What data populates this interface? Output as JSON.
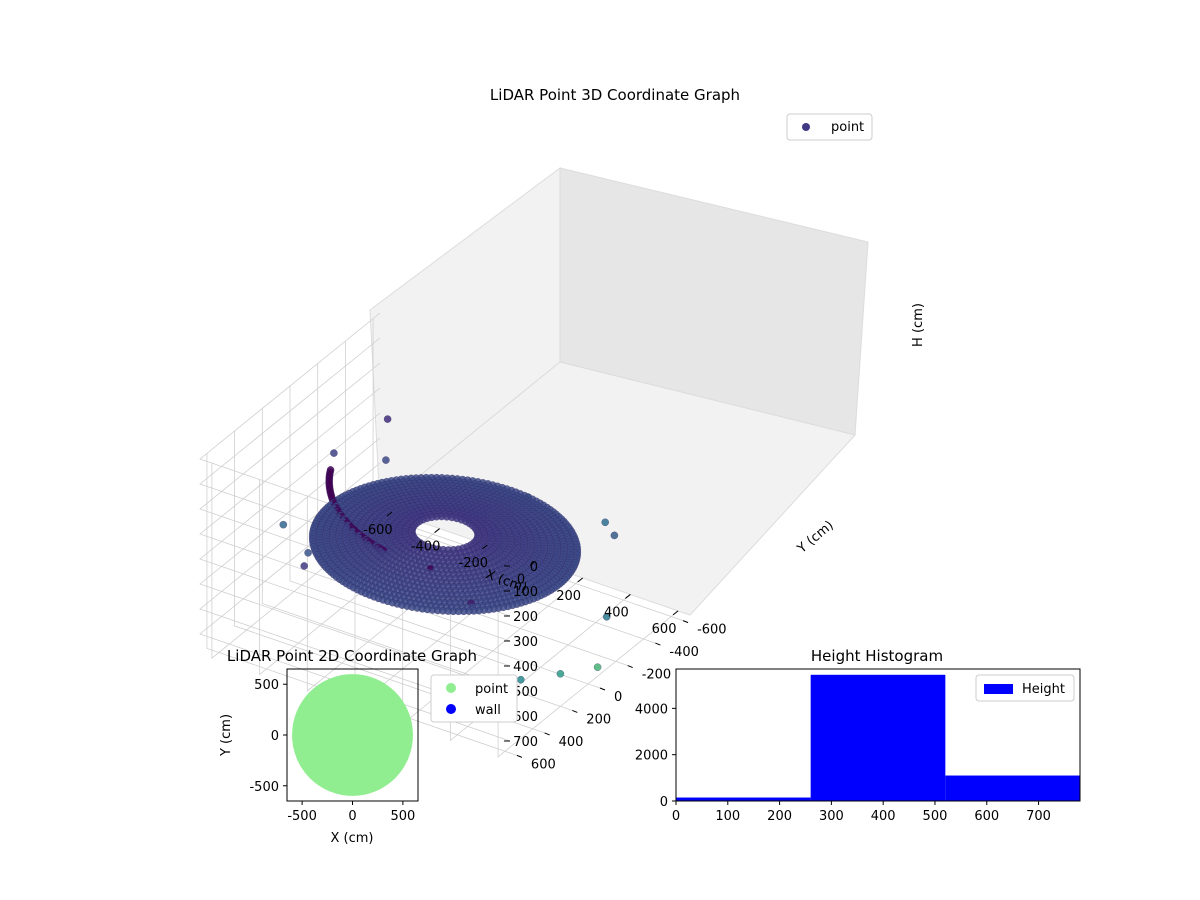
{
  "chart_data": [
    {
      "type": "scatter3d",
      "title": "LiDAR Point 3D Coordinate Graph",
      "xlabel": "X (cm)",
      "ylabel": "Y (cm)",
      "zlabel": "H (cm)",
      "xticks": [
        "-600",
        "-400",
        "-200",
        "0",
        "200",
        "400",
        "600"
      ],
      "yticks": [
        "-600",
        "-400",
        "-200",
        "0",
        "200",
        "400",
        "600"
      ],
      "zticks": [
        "0",
        "100",
        "200",
        "300",
        "400",
        "500",
        "600",
        "700"
      ],
      "xlim": [
        -650,
        650
      ],
      "ylim": [
        -650,
        650
      ],
      "zlim": [
        0,
        780
      ],
      "zaxis_inverted": true,
      "grid": true,
      "legend": {
        "placement": "top-right",
        "entries": [
          {
            "label": "point",
            "color": "#423983"
          }
        ]
      },
      "colormap": "viridis",
      "series": [
        {
          "name": "point",
          "shape": "dense ring of points with scattered outliers",
          "ring_outer_radius_cm": 480,
          "ring_height_cm": [
            300,
            500
          ],
          "sample_points": [
            {
              "x": -640,
              "y": -300,
              "h": 400
            },
            {
              "x": -620,
              "y": 100,
              "h": 500
            },
            {
              "x": -560,
              "y": -550,
              "h": 350
            },
            {
              "x": -480,
              "y": -400,
              "h": 420
            },
            {
              "x": -400,
              "y": 300,
              "h": 450
            },
            {
              "x": -300,
              "y": 500,
              "h": 380
            },
            {
              "x": 0,
              "y": -600,
              "h": 500
            },
            {
              "x": 300,
              "y": -640,
              "h": 520
            },
            {
              "x": 420,
              "y": -500,
              "h": 470
            },
            {
              "x": 200,
              "y": 450,
              "h": 250
            },
            {
              "x": 400,
              "y": 500,
              "h": 300
            },
            {
              "x": 550,
              "y": 400,
              "h": 600
            },
            {
              "x": 600,
              "y": 200,
              "h": 650
            },
            {
              "x": 620,
              "y": -100,
              "h": 550
            },
            {
              "x": 640,
              "y": 0,
              "h": 700
            }
          ]
        }
      ]
    },
    {
      "type": "scatter",
      "title": "LiDAR Point 2D Coordinate Graph",
      "xlabel": "X (cm)",
      "ylabel": "Y (cm)",
      "xticks": [
        "-500",
        "0",
        "500"
      ],
      "yticks": [
        "-500",
        "0",
        "500"
      ],
      "xlim": [
        -650,
        650
      ],
      "ylim": [
        -650,
        650
      ],
      "legend": {
        "placement": "outside-right",
        "entries": [
          {
            "label": "point",
            "color": "#90ee90"
          },
          {
            "label": "wall",
            "color": "#0000ff"
          }
        ]
      },
      "series": [
        {
          "name": "point",
          "color": "#90ee90",
          "shape": "filled disc",
          "radius_cm": 600
        },
        {
          "name": "wall",
          "color": "#0000ff",
          "values": []
        }
      ]
    },
    {
      "type": "bar",
      "title": "Height Histogram",
      "xticks": [
        "0",
        "100",
        "200",
        "300",
        "400",
        "500",
        "600",
        "700"
      ],
      "yticks": [
        "0",
        "2000",
        "4000"
      ],
      "xlim": [
        0,
        780
      ],
      "ylim": [
        0,
        5700
      ],
      "bins": [
        {
          "start": 0,
          "end": 260,
          "count": 150
        },
        {
          "start": 260,
          "end": 520,
          "count": 5450
        },
        {
          "start": 520,
          "end": 780,
          "count": 1100
        }
      ],
      "color": "#0000ff",
      "legend": {
        "placement": "top-right",
        "entries": [
          {
            "label": "Height",
            "color": "#0000ff"
          }
        ]
      }
    }
  ]
}
